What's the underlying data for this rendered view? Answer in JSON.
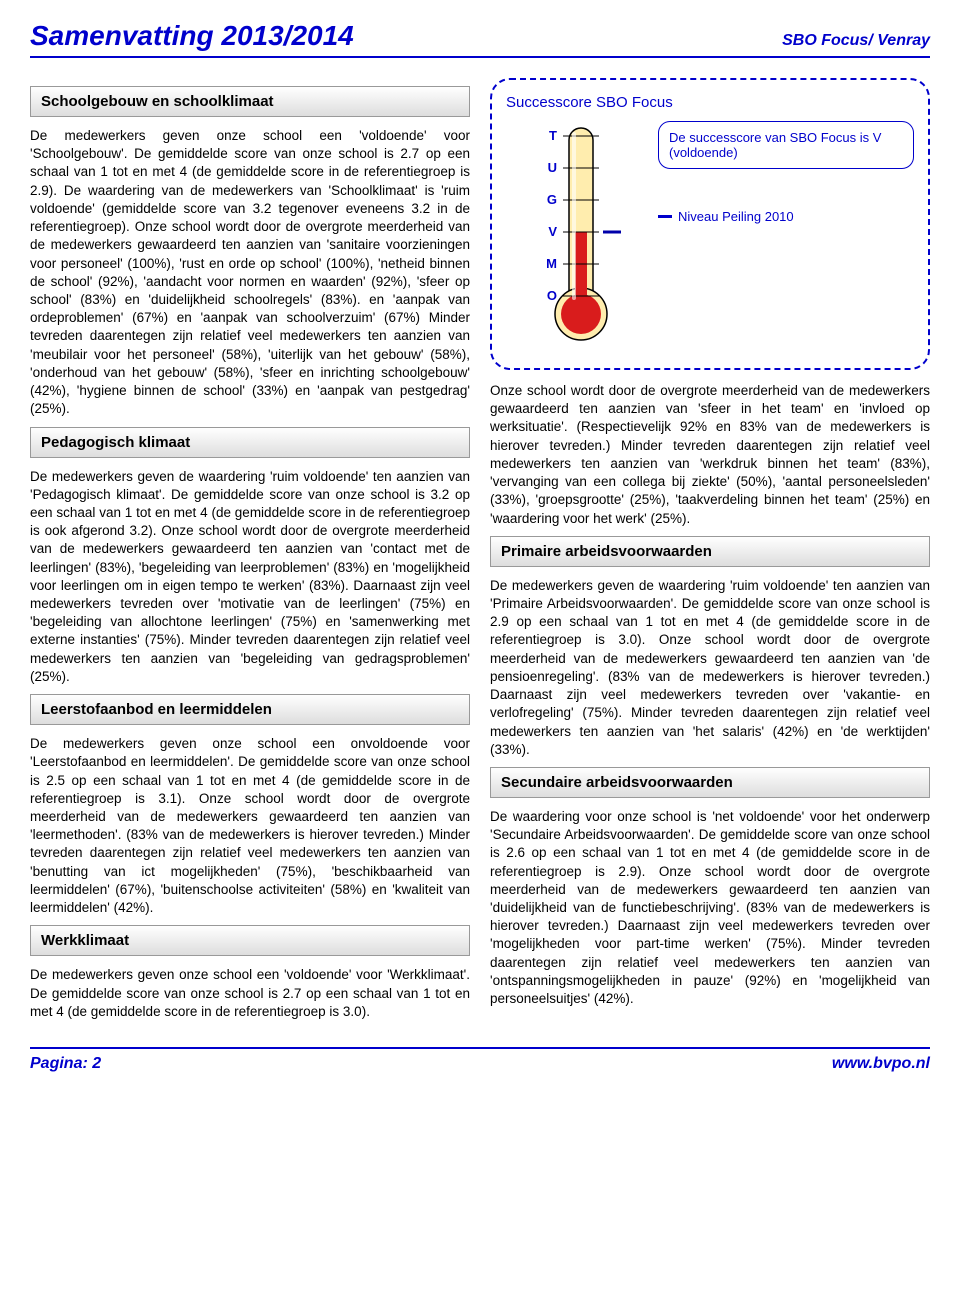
{
  "header": {
    "title": "Samenvatting 2013/2014",
    "right": "SBO Focus/ Venray"
  },
  "left": {
    "sections": [
      {
        "title": "Schoolgebouw en schoolklimaat",
        "text": "De medewerkers geven onze school een 'voldoende' voor 'Schoolgebouw'. De gemiddelde score van onze school is 2.7 op een schaal van 1 tot en met 4 (de gemiddelde score in de referentiegroep is 2.9). De waardering van de medewerkers van 'Schoolklimaat' is 'ruim voldoende' (gemiddelde score van 3.2 tegenover eveneens 3.2 in de referentiegroep).\nOnze school wordt door de overgrote meerderheid van de medewerkers gewaardeerd ten aanzien van 'sanitaire voorzieningen voor personeel' (100%), 'rust en orde op school' (100%), 'netheid binnen de school' (92%), 'aandacht voor normen en waarden' (92%), 'sfeer op school' (83%) en 'duidelijkheid schoolregels' (83%). en 'aanpak van ordeproblemen' (67%) en 'aanpak van schoolverzuim' (67%) Minder tevreden daarentegen zijn relatief veel medewerkers ten aanzien van 'meubilair voor het personeel' (58%), 'uiterlijk van het gebouw' (58%), 'onderhoud van het gebouw' (58%), 'sfeer en inrichting schoolgebouw' (42%), 'hygiene binnen de school' (33%) en 'aanpak van pestgedrag' (25%)."
      },
      {
        "title": "Pedagogisch klimaat",
        "text": "De medewerkers geven de waardering 'ruim voldoende' ten aanzien van 'Pedagogisch klimaat'. De gemiddelde score van onze school is 3.2 op een schaal van 1 tot en met 4 (de gemiddelde score in de referentiegroep is ook afgerond 3.2). Onze school wordt door de overgrote meerderheid van de medewerkers gewaardeerd ten aanzien van 'contact met de leerlingen' (83%), 'begeleiding van leerproblemen' (83%) en 'mogelijkheid voor leerlingen om in eigen tempo te werken' (83%). Daarnaast zijn veel medewerkers tevreden over 'motivatie van de leerlingen' (75%) en 'begeleiding van allochtone leerlingen' (75%) en 'samenwerking met externe instanties' (75%).\nMinder tevreden daarentegen zijn relatief veel medewerkers ten aanzien van 'begeleiding van gedragsproblemen' (25%)."
      },
      {
        "title": "Leerstofaanbod en leermiddelen",
        "text": "De medewerkers geven onze school een onvoldoende voor 'Leerstofaanbod en leermiddelen'. De gemiddelde score van onze school is 2.5 op een schaal van 1 tot en met 4 (de gemiddelde score in de referentiegroep is 3.1).\nOnze school wordt door de overgrote meerderheid van de medewerkers gewaardeerd ten aanzien van 'leermethoden'. (83% van de medewerkers is hierover tevreden.)\nMinder tevreden daarentegen zijn relatief veel medewerkers ten aanzien van 'benutting van ict mogelijkheden' (75%), 'beschikbaarheid van leermiddelen' (67%), 'buitenschoolse activiteiten' (58%) en 'kwaliteit van leermiddelen' (42%)."
      },
      {
        "title": "Werkklimaat",
        "text": "De medewerkers geven onze school een 'voldoende' voor 'Werkklimaat'. De gemiddelde score van onze school is 2.7 op een schaal van 1 tot en met 4 (de gemiddelde score in de referentiegroep is 3.0)."
      }
    ]
  },
  "right": {
    "thermo": {
      "title": "Successcore SBO Focus",
      "callout": "De successcore van SBO Focus\nis V (voldoende)",
      "legend": "Niveau Peiling 2010",
      "scale_labels": [
        "T",
        "U",
        "G",
        "V",
        "M",
        "O"
      ],
      "fill_level_index": 3,
      "peiling_index": 3,
      "colors": {
        "tube_fill": "#ffedae",
        "bulb_fill": "#ffedae",
        "mercury": "#d91c1c",
        "outline": "#000000",
        "tick": "#0000cc",
        "label": "#0000cc",
        "peiling": "#0000aa"
      }
    },
    "paragraphs": [
      "Onze school wordt door de overgrote meerderheid van de medewerkers gewaardeerd ten aanzien van 'sfeer in het team' en 'invloed op werksituatie'. (Respectievelijk 92% en 83% van de medewerkers is hierover tevreden.)\nMinder tevreden daarentegen zijn relatief veel medewerkers ten aanzien van 'werkdruk binnen het team' (83%), 'vervanging van een collega bij ziekte' (50%), 'aantal personeelsleden' (33%), 'groepsgrootte' (25%), 'taakverdeling binnen het team' (25%) en 'waardering voor het werk' (25%)."
    ],
    "sections": [
      {
        "title": "Primaire arbeidsvoorwaarden",
        "text": "De medewerkers geven de waardering 'ruim voldoende' ten aanzien van 'Primaire Arbeidsvoorwaarden'. De gemiddelde score van onze school is 2.9 op een schaal van 1 tot en met 4 (de gemiddelde score in de referentiegroep is 3.0).\nOnze school wordt door de overgrote meerderheid van de medewerkers gewaardeerd ten aanzien van 'de pensioenregeling'. (83% van de medewerkers is hierover tevreden.) Daarnaast zijn veel medewerkers tevreden over 'vakantie- en verlofregeling' (75%).\nMinder tevreden daarentegen zijn relatief veel medewerkers ten aanzien van 'het salaris' (42%) en 'de werktijden' (33%)."
      },
      {
        "title": "Secundaire arbeidsvoorwaarden",
        "text": "De waardering voor onze school is 'net voldoende' voor het onderwerp 'Secundaire Arbeidsvoorwaarden'. De gemiddelde score van onze school is 2.6 op een schaal van 1 tot en met 4 (de gemiddelde score in de referentiegroep is 2.9). Onze school wordt door de overgrote meerderheid van de medewerkers gewaardeerd ten aanzien van 'duidelijkheid van de functiebeschrijving'. (83% van de medewerkers is hierover tevreden.) Daarnaast zijn veel medewerkers tevreden over 'mogelijkheden voor part-time werken' (75%).\nMinder tevreden daarentegen zijn relatief veel medewerkers ten aanzien van 'ontspanningsmogelijkheden in pauze' (92%) en 'mogelijkheid van personeelsuitjes' (42%)."
      }
    ]
  },
  "footer": {
    "left": "Pagina: 2",
    "right": "www.bvpo.nl"
  }
}
